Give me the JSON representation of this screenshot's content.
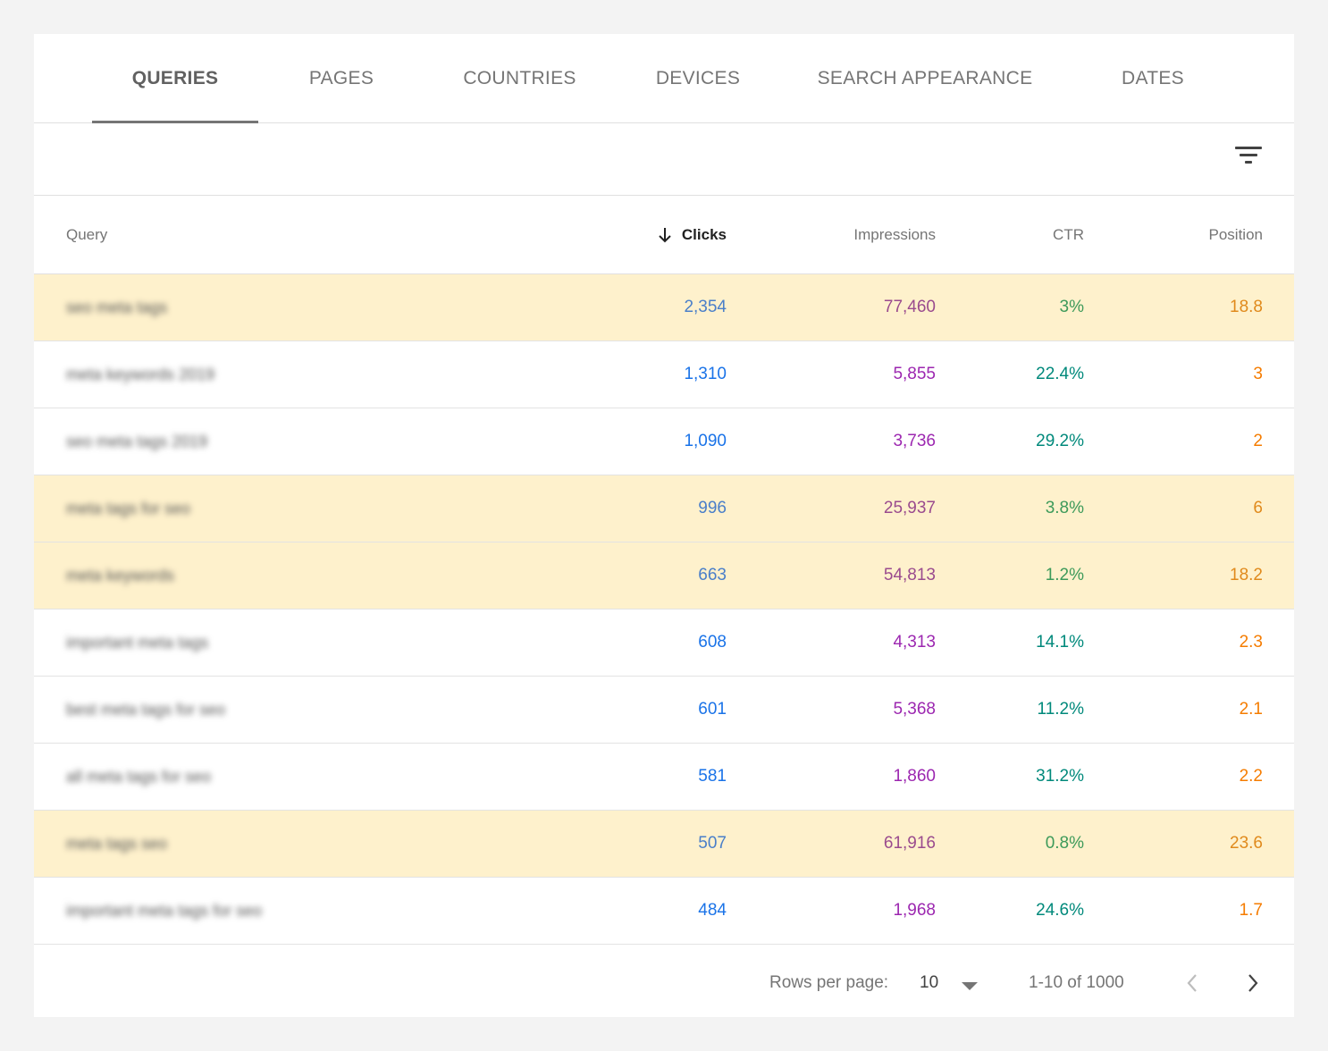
{
  "tabs": [
    {
      "label": "QUERIES",
      "active": true
    },
    {
      "label": "PAGES",
      "active": false
    },
    {
      "label": "COUNTRIES",
      "active": false
    },
    {
      "label": "DEVICES",
      "active": false
    },
    {
      "label": "SEARCH APPEARANCE",
      "active": false
    },
    {
      "label": "DATES",
      "active": false
    }
  ],
  "toolbar": {
    "filter_icon": "filter-list-icon"
  },
  "table": {
    "columns": {
      "query": "Query",
      "clicks": "Clicks",
      "impressions": "Impressions",
      "ctr": "CTR",
      "position": "Position"
    },
    "sorted_by": "clicks",
    "rows": [
      {
        "query": "seo meta tags",
        "clicks": "2,354",
        "impressions": "77,460",
        "ctr": "3%",
        "position": "18.8",
        "highlighted": true
      },
      {
        "query": "meta keywords 2019",
        "clicks": "1,310",
        "impressions": "5,855",
        "ctr": "22.4%",
        "position": "3",
        "highlighted": false
      },
      {
        "query": "seo meta tags 2019",
        "clicks": "1,090",
        "impressions": "3,736",
        "ctr": "29.2%",
        "position": "2",
        "highlighted": false
      },
      {
        "query": "meta tags for seo",
        "clicks": "996",
        "impressions": "25,937",
        "ctr": "3.8%",
        "position": "6",
        "highlighted": true
      },
      {
        "query": "meta keywords",
        "clicks": "663",
        "impressions": "54,813",
        "ctr": "1.2%",
        "position": "18.2",
        "highlighted": true
      },
      {
        "query": "important meta tags",
        "clicks": "608",
        "impressions": "4,313",
        "ctr": "14.1%",
        "position": "2.3",
        "highlighted": false
      },
      {
        "query": "best meta tags for seo",
        "clicks": "601",
        "impressions": "5,368",
        "ctr": "11.2%",
        "position": "2.1",
        "highlighted": false
      },
      {
        "query": "all meta tags for seo",
        "clicks": "581",
        "impressions": "1,860",
        "ctr": "31.2%",
        "position": "2.2",
        "highlighted": false
      },
      {
        "query": "meta tags seo",
        "clicks": "507",
        "impressions": "61,916",
        "ctr": "0.8%",
        "position": "23.6",
        "highlighted": true
      },
      {
        "query": "important meta tags for seo",
        "clicks": "484",
        "impressions": "1,968",
        "ctr": "24.6%",
        "position": "1.7",
        "highlighted": false
      }
    ]
  },
  "pagination": {
    "rows_per_page_label": "Rows per page:",
    "rows_per_page_value": "10",
    "range": "1-10 of 1000"
  },
  "colors": {
    "clicks": "#1a73e8",
    "impressions": "#9c27b0",
    "ctr": "#00897b",
    "position": "#f57c00",
    "highlight_row": "#fef1cc"
  }
}
